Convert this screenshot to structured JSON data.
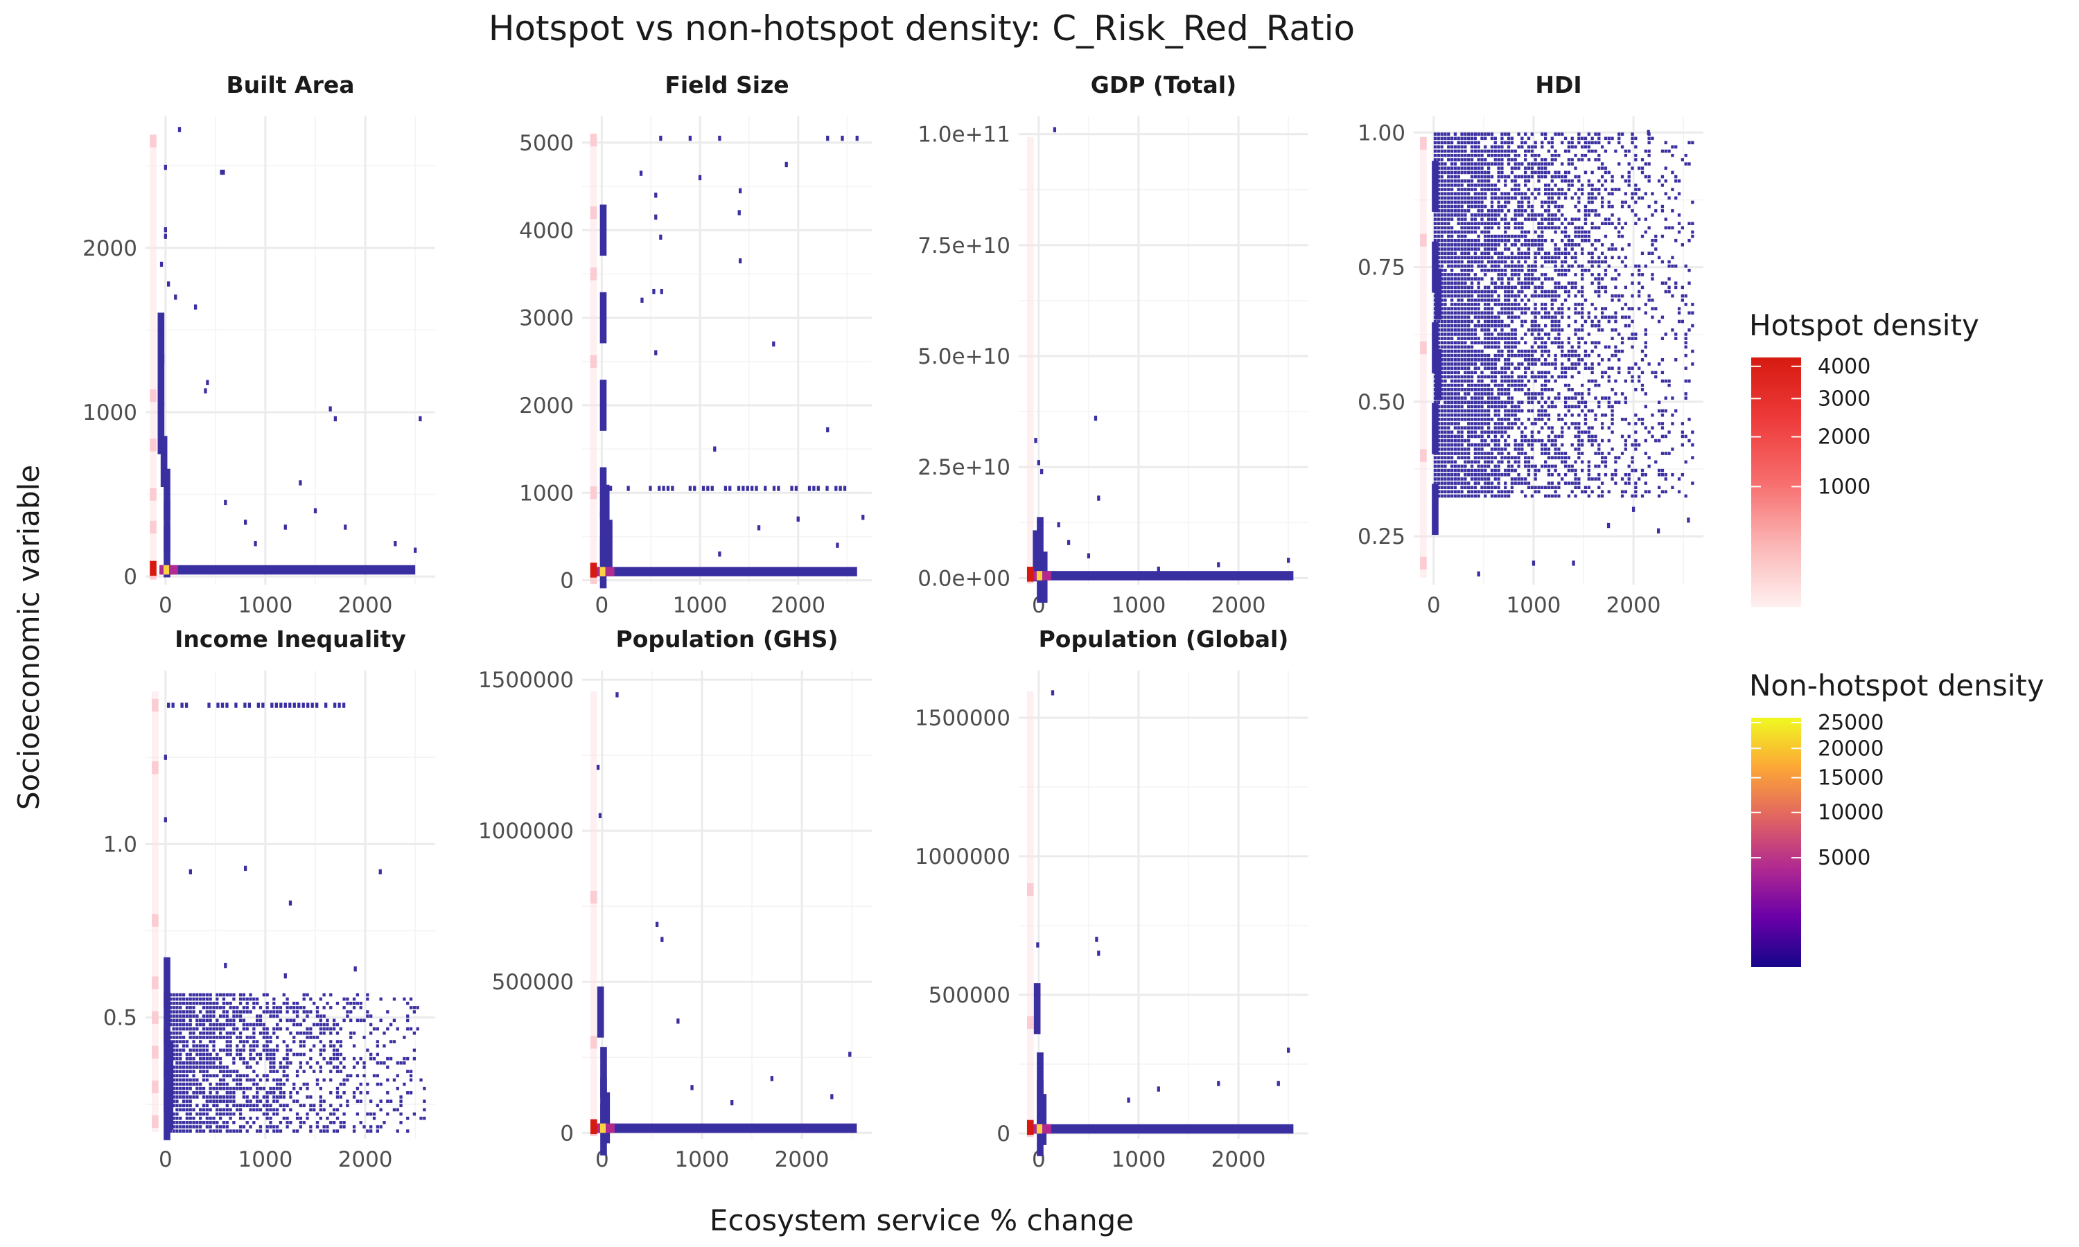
{
  "chart_data": {
    "type": "heatmap",
    "title": "Hotspot vs non-hotspot density: C_Risk_Red_Ratio",
    "xlabel": "Ecosystem service % change",
    "ylabel": "Socioeconomic variable",
    "legends": [
      {
        "title": "Hotspot density",
        "labels": [
          "4000",
          "3000",
          "2000",
          "1000"
        ],
        "values": [
          4000,
          3000,
          2000,
          1000
        ],
        "range": [
          0,
          4300
        ],
        "colors": [
          "#fff0f0",
          "#fbb5b5",
          "#f76d6d",
          "#ee3b3b",
          "#d61a10"
        ]
      },
      {
        "title": "Non-hotspot density",
        "labels": [
          "25000",
          "20000",
          "15000",
          "10000",
          "5000"
        ],
        "values": [
          25000,
          20000,
          15000,
          10000,
          5000
        ],
        "range": [
          0,
          26000
        ],
        "colors": [
          "#15068a",
          "#6a00a8",
          "#b12a90",
          "#e16462",
          "#fca636",
          "#f0f921"
        ]
      }
    ],
    "panels": [
      {
        "title": "Built Area",
        "xticks": [
          "0",
          "1000",
          "2000"
        ],
        "xtick_values": [
          0,
          1000,
          2000
        ],
        "yticks": [
          "0",
          "1000",
          "2000"
        ],
        "ytick_values": [
          0,
          1000,
          2000
        ],
        "xlim": [
          -200,
          2700
        ],
        "ylim": [
          -50,
          2800
        ],
        "hotspot": [
          [
            -120,
            20
          ],
          [
            -120,
            2650
          ],
          [
            -120,
            1100
          ],
          [
            -120,
            800
          ],
          [
            -120,
            500
          ],
          [
            -120,
            300
          ]
        ],
        "non_hotspot_dense": [
          [
            -60,
            1450
          ],
          [
            -60,
            1200
          ],
          [
            -60,
            900
          ],
          [
            -30,
            700
          ],
          [
            0,
            500
          ],
          [
            0,
            300
          ],
          [
            0,
            150
          ]
        ],
        "scatter": [
          [
            140,
            2720
          ],
          [
            0,
            2490
          ],
          [
            560,
            2460
          ],
          [
            580,
            2460
          ],
          [
            0,
            2110
          ],
          [
            0,
            2070
          ],
          [
            -40,
            1900
          ],
          [
            30,
            1780
          ],
          [
            300,
            1640
          ],
          [
            100,
            1700
          ],
          [
            420,
            1180
          ],
          [
            400,
            1130
          ],
          [
            1650,
            1020
          ],
          [
            1700,
            960
          ],
          [
            2550,
            960
          ],
          [
            1350,
            570
          ],
          [
            1500,
            400
          ],
          [
            600,
            450
          ],
          [
            800,
            330
          ],
          [
            1800,
            300
          ],
          [
            2300,
            200
          ],
          [
            2500,
            160
          ],
          [
            1200,
            300
          ],
          [
            900,
            200
          ]
        ],
        "floor": [
          -60,
          2500,
          30
        ]
      },
      {
        "title": "Field Size",
        "xticks": [
          "0",
          "1000",
          "2000"
        ],
        "xtick_values": [
          0,
          1000,
          2000
        ],
        "yticks": [
          "0",
          "1000",
          "2000",
          "3000",
          "4000",
          "5000"
        ],
        "ytick_values": [
          0,
          1000,
          2000,
          3000,
          4000,
          5000
        ],
        "xlim": [
          -200,
          2750
        ],
        "ylim": [
          -50,
          5300
        ],
        "hotspot": [
          [
            -80,
            30
          ],
          [
            -80,
            5030
          ],
          [
            -80,
            1000
          ],
          [
            -80,
            2500
          ],
          [
            -80,
            3500
          ],
          [
            -80,
            4200
          ]
        ],
        "non_hotspot_dense": [
          [
            0,
            1000
          ],
          [
            0,
            500
          ],
          [
            0,
            200
          ],
          [
            30,
            800
          ],
          [
            60,
            400
          ],
          [
            0,
            3000
          ],
          [
            0,
            4000
          ],
          [
            0,
            2000
          ]
        ],
        "scatter": [
          [
            600,
            5050
          ],
          [
            900,
            5050
          ],
          [
            1200,
            5050
          ],
          [
            2450,
            5050
          ],
          [
            2300,
            5050
          ],
          [
            2600,
            5050
          ],
          [
            400,
            4650
          ],
          [
            550,
            4400
          ],
          [
            1000,
            4600
          ],
          [
            1880,
            4750
          ],
          [
            550,
            4150
          ],
          [
            600,
            3920
          ],
          [
            1410,
            4450
          ],
          [
            1400,
            4200
          ],
          [
            1410,
            3650
          ],
          [
            410,
            3200
          ],
          [
            530,
            3300
          ],
          [
            610,
            3300
          ],
          [
            1750,
            2700
          ],
          [
            550,
            2600
          ],
          [
            2300,
            1720
          ],
          [
            1150,
            1500
          ],
          [
            2660,
            720
          ],
          [
            2000,
            700
          ],
          [
            1600,
            600
          ],
          [
            1200,
            300
          ],
          [
            2400,
            400
          ]
        ],
        "row_at": [
          1050,
          0,
          2500
        ],
        "floor": [
          -60,
          2600,
          80
        ]
      },
      {
        "title": "GDP (Total)",
        "xticks": [
          "0",
          "1000",
          "2000"
        ],
        "xtick_values": [
          0,
          1000,
          2000
        ],
        "yticks": [
          "0.0e+00",
          "2.5e+10",
          "5.0e+10",
          "7.5e+10",
          "1.0e+11"
        ],
        "ytick_values": [
          0,
          25000000000,
          50000000000,
          75000000000,
          100000000000
        ],
        "xlim": [
          -200,
          2700
        ],
        "ylim": [
          -1500000000,
          104000000000
        ],
        "hotspot": [
          [
            -80,
            200000000
          ]
        ],
        "non_hotspot_dense": [
          [
            0,
            200000000
          ],
          [
            40,
            200000000
          ],
          [
            -40,
            5000000000
          ],
          [
            0,
            8000000000
          ]
        ],
        "scatter": [
          [
            160,
            101000000000
          ],
          [
            -30,
            31000000000
          ],
          [
            0,
            26000000000
          ],
          [
            30,
            24000000000
          ],
          [
            570,
            36000000000
          ],
          [
            600,
            18000000000
          ],
          [
            200,
            12000000000
          ],
          [
            300,
            8000000000
          ],
          [
            500,
            5000000000
          ],
          [
            1200,
            2000000000
          ],
          [
            1800,
            3000000000
          ],
          [
            2500,
            4000000000
          ]
        ],
        "floor": [
          -60,
          2550,
          150000000
        ]
      },
      {
        "title": "HDI",
        "xticks": [
          "0",
          "1000",
          "2000"
        ],
        "xtick_values": [
          0,
          1000,
          2000
        ],
        "yticks": [
          "0.25",
          "0.50",
          "0.75",
          "1.00"
        ],
        "ytick_values": [
          0.25,
          0.5,
          0.75,
          1.0
        ],
        "xlim": [
          -200,
          2700
        ],
        "ylim": [
          0.16,
          1.03
        ],
        "hotspot": [
          [
            -100,
            0.2
          ],
          [
            -100,
            0.4
          ],
          [
            -100,
            0.6
          ],
          [
            -100,
            0.8
          ],
          [
            -100,
            0.98
          ]
        ],
        "non_hotspot_dense": [
          [
            0,
            0.3
          ],
          [
            0,
            0.45
          ],
          [
            0,
            0.6
          ],
          [
            0,
            0.75
          ],
          [
            0,
            0.9
          ],
          [
            30,
            0.55
          ],
          [
            30,
            0.7
          ]
        ],
        "cloud": [
          0,
          2600,
          0.32,
          1.0,
          0.9
        ],
        "scatter": [
          [
            2150,
            1.0
          ],
          [
            450,
            0.18
          ],
          [
            1000,
            0.2
          ],
          [
            1400,
            0.2
          ],
          [
            2250,
            0.26
          ],
          [
            2550,
            0.28
          ],
          [
            1750,
            0.27
          ],
          [
            2000,
            0.3
          ]
        ]
      },
      {
        "title": "Income Inequality",
        "xticks": [
          "0",
          "1000",
          "2000"
        ],
        "xtick_values": [
          0,
          1000,
          2000
        ],
        "yticks": [
          "0.5",
          "1.0"
        ],
        "ytick_values": [
          0.5,
          1.0
        ],
        "xlim": [
          -200,
          2700
        ],
        "ylim": [
          0.15,
          1.5
        ],
        "hotspot": [
          [
            -100,
            0.2
          ],
          [
            -100,
            0.3
          ],
          [
            -100,
            0.4
          ],
          [
            -100,
            0.5
          ],
          [
            -100,
            0.6
          ],
          [
            -100,
            1.22
          ],
          [
            -100,
            1.4
          ],
          [
            -100,
            0.78
          ]
        ],
        "non_hotspot_dense": [
          [
            0,
            0.22
          ],
          [
            0,
            0.3
          ],
          [
            0,
            0.4
          ],
          [
            0,
            0.5
          ],
          [
            0,
            0.6
          ],
          [
            30,
            0.25
          ],
          [
            30,
            0.36
          ]
        ],
        "cloud": [
          0,
          2600,
          0.17,
          0.57,
          0.8
        ],
        "scatter": [
          [
            0,
            1.25
          ],
          [
            0,
            1.07
          ],
          [
            250,
            0.92
          ],
          [
            800,
            0.93
          ],
          [
            1250,
            0.83
          ],
          [
            2150,
            0.92
          ],
          [
            600,
            0.65
          ],
          [
            1200,
            0.62
          ],
          [
            1900,
            0.64
          ]
        ],
        "row_at": [
          1.4,
          -60,
          1800
        ]
      },
      {
        "title": "Population (GHS)",
        "xticks": [
          "0",
          "1000",
          "2000"
        ],
        "xtick_values": [
          0,
          1000,
          2000
        ],
        "yticks": [
          "0",
          "500000",
          "1000000",
          "1500000"
        ],
        "ytick_values": [
          0,
          500000,
          1000000,
          1500000
        ],
        "xlim": [
          -200,
          2700
        ],
        "ylim": [
          -20000,
          1530000
        ],
        "hotspot": [
          [
            -80,
            10000
          ],
          [
            -80,
            780000
          ],
          [
            -80,
            300000
          ]
        ],
        "non_hotspot_dense": [
          [
            0,
            10000
          ],
          [
            0,
            100000
          ],
          [
            0,
            200000
          ],
          [
            30,
            50000
          ],
          [
            -30,
            400000
          ]
        ],
        "scatter": [
          [
            150,
            1450000
          ],
          [
            -40,
            1210000
          ],
          [
            -20,
            1050000
          ],
          [
            550,
            690000
          ],
          [
            600,
            640000
          ],
          [
            760,
            370000
          ],
          [
            2480,
            260000
          ],
          [
            1700,
            180000
          ],
          [
            1300,
            100000
          ],
          [
            900,
            150000
          ],
          [
            2300,
            120000
          ]
        ],
        "floor": [
          -60,
          2550,
          10000
        ]
      },
      {
        "title": "Population (Global)",
        "xticks": [
          "0",
          "1000",
          "2000"
        ],
        "xtick_values": [
          0,
          1000,
          2000
        ],
        "yticks": [
          "0",
          "500000",
          "1000000",
          "1500000"
        ],
        "ytick_values": [
          0,
          500000,
          1000000,
          1500000
        ],
        "xlim": [
          -200,
          2700
        ],
        "ylim": [
          -20000,
          1670000
        ],
        "hotspot": [
          [
            -80,
            10000
          ],
          [
            -80,
            880000
          ],
          [
            -80,
            400000
          ]
        ],
        "non_hotspot_dense": [
          [
            0,
            10000
          ],
          [
            0,
            100000
          ],
          [
            0,
            200000
          ],
          [
            30,
            50000
          ],
          [
            -30,
            450000
          ]
        ],
        "scatter": [
          [
            140,
            1590000
          ],
          [
            -10,
            680000
          ],
          [
            580,
            700000
          ],
          [
            600,
            650000
          ],
          [
            1200,
            160000
          ],
          [
            1800,
            180000
          ],
          [
            2500,
            300000
          ],
          [
            2400,
            180000
          ],
          [
            900,
            120000
          ]
        ],
        "floor": [
          -60,
          2550,
          10000
        ]
      }
    ]
  }
}
